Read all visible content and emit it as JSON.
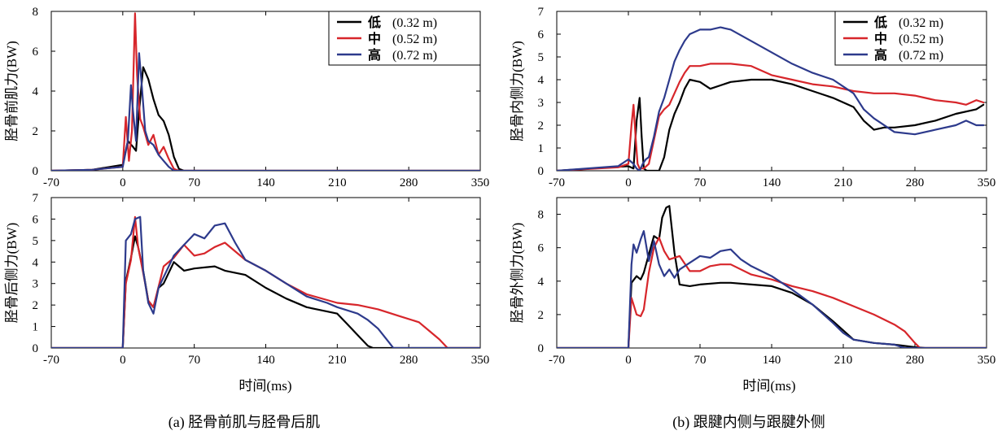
{
  "colors": {
    "low": "#000000",
    "mid": "#d7262b",
    "high": "#2d3a8c"
  },
  "figure": {
    "xlabel": "时间(ms)",
    "captions": [
      "(a) 胫骨前肌与胫骨后肌",
      "(b) 跟腱内侧与跟腱外侧"
    ]
  },
  "chart_data": [
    {
      "type": "line",
      "panel": "a-top",
      "ylabel": "胫骨前肌力(BW)",
      "xlim": [
        -70,
        350
      ],
      "ylim": [
        0,
        8
      ],
      "xticks": [
        -70,
        0,
        70,
        140,
        210,
        280,
        350
      ],
      "yticks": [
        0,
        2,
        4,
        6,
        8
      ],
      "legend": {
        "position": "top-right",
        "entries": [
          [
            "低",
            "(0.32 m)"
          ],
          [
            "中",
            "(0.52 m)"
          ],
          [
            "高",
            "(0.72 m)"
          ]
        ]
      },
      "series": [
        {
          "name": "低 (0.32 m)",
          "color": "low",
          "x": [
            -70,
            -30,
            0,
            5,
            10,
            13,
            16,
            20,
            25,
            30,
            35,
            40,
            45,
            50,
            55,
            60,
            70,
            350
          ],
          "y": [
            0,
            0.05,
            0.3,
            1.5,
            1.2,
            1.0,
            3.0,
            5.2,
            4.6,
            3.6,
            2.8,
            2.5,
            1.8,
            0.7,
            0.1,
            0,
            0,
            0
          ]
        },
        {
          "name": "中 (0.52 m)",
          "color": "mid",
          "x": [
            -70,
            -30,
            0,
            3,
            6,
            9,
            12,
            14,
            17,
            20,
            25,
            30,
            35,
            40,
            45,
            50,
            55,
            350
          ],
          "y": [
            0,
            0.05,
            0.2,
            2.7,
            0.5,
            2.0,
            7.9,
            4.8,
            2.6,
            2.2,
            1.3,
            1.8,
            0.8,
            1.2,
            0.6,
            0.1,
            0,
            0
          ]
        },
        {
          "name": "高 (0.72 m)",
          "color": "high",
          "x": [
            -70,
            -30,
            0,
            5,
            8,
            10,
            13,
            16,
            19,
            22,
            25,
            30,
            35,
            40,
            45,
            50,
            350
          ],
          "y": [
            0,
            0.05,
            0.2,
            1.5,
            4.3,
            3.0,
            1.5,
            5.9,
            4.0,
            2.0,
            1.5,
            1.3,
            0.8,
            0.5,
            0.2,
            0,
            0
          ]
        }
      ]
    },
    {
      "type": "line",
      "panel": "a-bottom",
      "ylabel": "胫骨后侧力(BW)",
      "xlim": [
        -70,
        350
      ],
      "ylim": [
        0,
        7
      ],
      "xticks": [
        -70,
        0,
        70,
        140,
        210,
        280,
        350
      ],
      "yticks": [
        0,
        1,
        2,
        3,
        4,
        5,
        6,
        7
      ],
      "series": [
        {
          "name": "低 (0.32 m)",
          "color": "low",
          "x": [
            -70,
            0,
            3,
            8,
            12,
            15,
            20,
            25,
            30,
            35,
            40,
            50,
            60,
            70,
            90,
            100,
            120,
            140,
            160,
            180,
            200,
            210,
            220,
            230,
            240,
            245,
            350
          ],
          "y": [
            0,
            0,
            3.1,
            4.2,
            5.2,
            4.7,
            3.6,
            2.2,
            1.9,
            2.8,
            3.0,
            4.0,
            3.6,
            3.7,
            3.8,
            3.6,
            3.4,
            2.8,
            2.3,
            1.9,
            1.7,
            1.6,
            1.1,
            0.6,
            0.1,
            0,
            0
          ]
        },
        {
          "name": "中 (0.52 m)",
          "color": "mid",
          "x": [
            -70,
            0,
            3,
            8,
            12,
            15,
            20,
            25,
            30,
            40,
            50,
            60,
            70,
            80,
            90,
            100,
            110,
            120,
            140,
            160,
            180,
            210,
            230,
            250,
            270,
            290,
            300,
            310,
            318,
            350
          ],
          "y": [
            0,
            0,
            3.0,
            4.1,
            6.1,
            4.7,
            3.5,
            2.2,
            1.9,
            3.8,
            4.2,
            4.8,
            4.3,
            4.4,
            4.7,
            4.9,
            4.5,
            4.1,
            3.6,
            3.0,
            2.5,
            2.1,
            2.0,
            1.8,
            1.5,
            1.2,
            0.8,
            0.4,
            0,
            0
          ]
        },
        {
          "name": "高 (0.72 m)",
          "color": "high",
          "x": [
            -70,
            0,
            3,
            8,
            12,
            17,
            20,
            25,
            30,
            35,
            40,
            50,
            60,
            70,
            80,
            90,
            100,
            110,
            120,
            140,
            160,
            180,
            200,
            210,
            230,
            240,
            250,
            260,
            265,
            350
          ],
          "y": [
            0,
            0,
            5.0,
            5.3,
            6.0,
            6.1,
            3.6,
            2.1,
            1.6,
            2.8,
            3.3,
            4.3,
            4.8,
            5.3,
            5.1,
            5.7,
            5.8,
            4.9,
            4.1,
            3.6,
            3.0,
            2.4,
            2.1,
            1.9,
            1.6,
            1.3,
            0.9,
            0.3,
            0,
            0
          ]
        }
      ]
    },
    {
      "type": "line",
      "panel": "b-top",
      "ylabel": "胫骨内侧力(BW)",
      "xlim": [
        -70,
        350
      ],
      "ylim": [
        0,
        7
      ],
      "xticks": [
        -70,
        0,
        70,
        140,
        210,
        280,
        350
      ],
      "yticks": [
        0,
        1,
        2,
        3,
        4,
        5,
        6,
        7
      ],
      "legend": {
        "position": "top-right",
        "entries": [
          [
            "低",
            "(0.32 m)"
          ],
          [
            "中",
            "(0.52 m)"
          ],
          [
            "高",
            "(0.72 m)"
          ]
        ]
      },
      "series": [
        {
          "name": "低 (0.32 m)",
          "color": "low",
          "x": [
            -70,
            0,
            5,
            8,
            11,
            13,
            15,
            18,
            20,
            30,
            35,
            40,
            45,
            50,
            55,
            60,
            70,
            80,
            100,
            120,
            140,
            160,
            180,
            200,
            220,
            230,
            240,
            250,
            260,
            280,
            300,
            320,
            340,
            347
          ],
          "y": [
            0,
            0.2,
            0.1,
            2.2,
            3.2,
            1.5,
            0.1,
            0,
            0,
            0,
            0.6,
            1.8,
            2.5,
            3.0,
            3.6,
            4.0,
            3.9,
            3.6,
            3.9,
            4.0,
            4.0,
            3.8,
            3.5,
            3.2,
            2.8,
            2.2,
            1.8,
            1.9,
            1.9,
            2.0,
            2.2,
            2.5,
            2.7,
            2.9
          ]
        },
        {
          "name": "中 (0.52 m)",
          "color": "mid",
          "x": [
            -70,
            -10,
            0,
            3,
            5,
            7,
            9,
            11,
            15,
            20,
            30,
            35,
            40,
            45,
            50,
            55,
            60,
            70,
            80,
            100,
            120,
            140,
            160,
            180,
            200,
            220,
            240,
            260,
            280,
            300,
            320,
            330,
            340,
            347
          ],
          "y": [
            0,
            0.15,
            0.3,
            2.0,
            2.9,
            1.5,
            0.3,
            0.1,
            0.1,
            0.3,
            2.4,
            2.7,
            2.9,
            3.4,
            3.9,
            4.3,
            4.6,
            4.6,
            4.7,
            4.7,
            4.6,
            4.2,
            4.0,
            3.8,
            3.7,
            3.5,
            3.4,
            3.4,
            3.3,
            3.1,
            3.0,
            2.9,
            3.1,
            3.0
          ]
        },
        {
          "name": "高 (0.72 m)",
          "color": "high",
          "x": [
            -70,
            -10,
            0,
            5,
            8,
            11,
            14,
            17,
            20,
            25,
            30,
            35,
            40,
            45,
            50,
            55,
            60,
            70,
            80,
            90,
            100,
            120,
            140,
            160,
            180,
            200,
            220,
            230,
            240,
            260,
            280,
            300,
            320,
            330,
            340,
            347
          ],
          "y": [
            0,
            0.2,
            0.5,
            0.3,
            0.1,
            0,
            0.3,
            0.5,
            0.6,
            1.5,
            2.6,
            3.2,
            4.0,
            4.8,
            5.3,
            5.7,
            6.0,
            6.2,
            6.2,
            6.3,
            6.2,
            5.7,
            5.2,
            4.7,
            4.3,
            4.0,
            3.4,
            2.7,
            2.3,
            1.7,
            1.6,
            1.8,
            2.0,
            2.2,
            2.0,
            2.0
          ]
        }
      ]
    },
    {
      "type": "line",
      "panel": "b-bottom",
      "ylabel": "胫骨外侧力(BW)",
      "xlim": [
        -70,
        350
      ],
      "ylim": [
        0,
        9
      ],
      "xticks": [
        -70,
        0,
        70,
        140,
        210,
        280,
        350
      ],
      "yticks": [
        0,
        2,
        4,
        6,
        8
      ],
      "series": [
        {
          "name": "低 (0.32 m)",
          "color": "low",
          "x": [
            -70,
            0,
            3,
            8,
            12,
            15,
            20,
            25,
            30,
            33,
            37,
            40,
            45,
            50,
            60,
            70,
            90,
            100,
            120,
            140,
            160,
            180,
            200,
            220,
            240,
            260,
            280,
            290,
            350
          ],
          "y": [
            0,
            0,
            3.9,
            4.3,
            4.1,
            4.5,
            5.6,
            6.7,
            6.5,
            7.8,
            8.4,
            8.5,
            5.7,
            3.8,
            3.7,
            3.8,
            3.9,
            3.9,
            3.8,
            3.7,
            3.3,
            2.6,
            1.6,
            0.5,
            0.3,
            0.2,
            0.05,
            0,
            0
          ]
        },
        {
          "name": "中 (0.52 m)",
          "color": "mid",
          "x": [
            -70,
            0,
            3,
            8,
            12,
            15,
            20,
            25,
            30,
            35,
            40,
            50,
            60,
            70,
            80,
            90,
            100,
            120,
            140,
            160,
            180,
            200,
            220,
            240,
            260,
            270,
            280,
            285,
            350
          ],
          "y": [
            0,
            0,
            3.0,
            2.0,
            1.9,
            2.3,
            4.5,
            6.0,
            6.6,
            5.8,
            5.3,
            5.5,
            4.6,
            4.6,
            4.9,
            5.0,
            5.0,
            4.4,
            4.1,
            3.7,
            3.4,
            3.0,
            2.5,
            2.0,
            1.4,
            1.0,
            0.3,
            0,
            0
          ]
        },
        {
          "name": "高 (0.72 m)",
          "color": "high",
          "x": [
            -70,
            0,
            3,
            5,
            8,
            12,
            15,
            20,
            25,
            30,
            35,
            40,
            45,
            50,
            60,
            70,
            80,
            90,
            100,
            110,
            120,
            140,
            160,
            180,
            200,
            210,
            220,
            240,
            260,
            270,
            350
          ],
          "y": [
            0,
            0,
            5.0,
            6.2,
            5.7,
            6.5,
            7.0,
            5.2,
            6.4,
            5.0,
            4.3,
            4.7,
            4.2,
            4.7,
            5.1,
            5.5,
            5.4,
            5.8,
            5.9,
            5.3,
            4.9,
            4.3,
            3.5,
            2.6,
            1.5,
            0.9,
            0.5,
            0.3,
            0.2,
            0,
            0
          ]
        }
      ]
    }
  ]
}
